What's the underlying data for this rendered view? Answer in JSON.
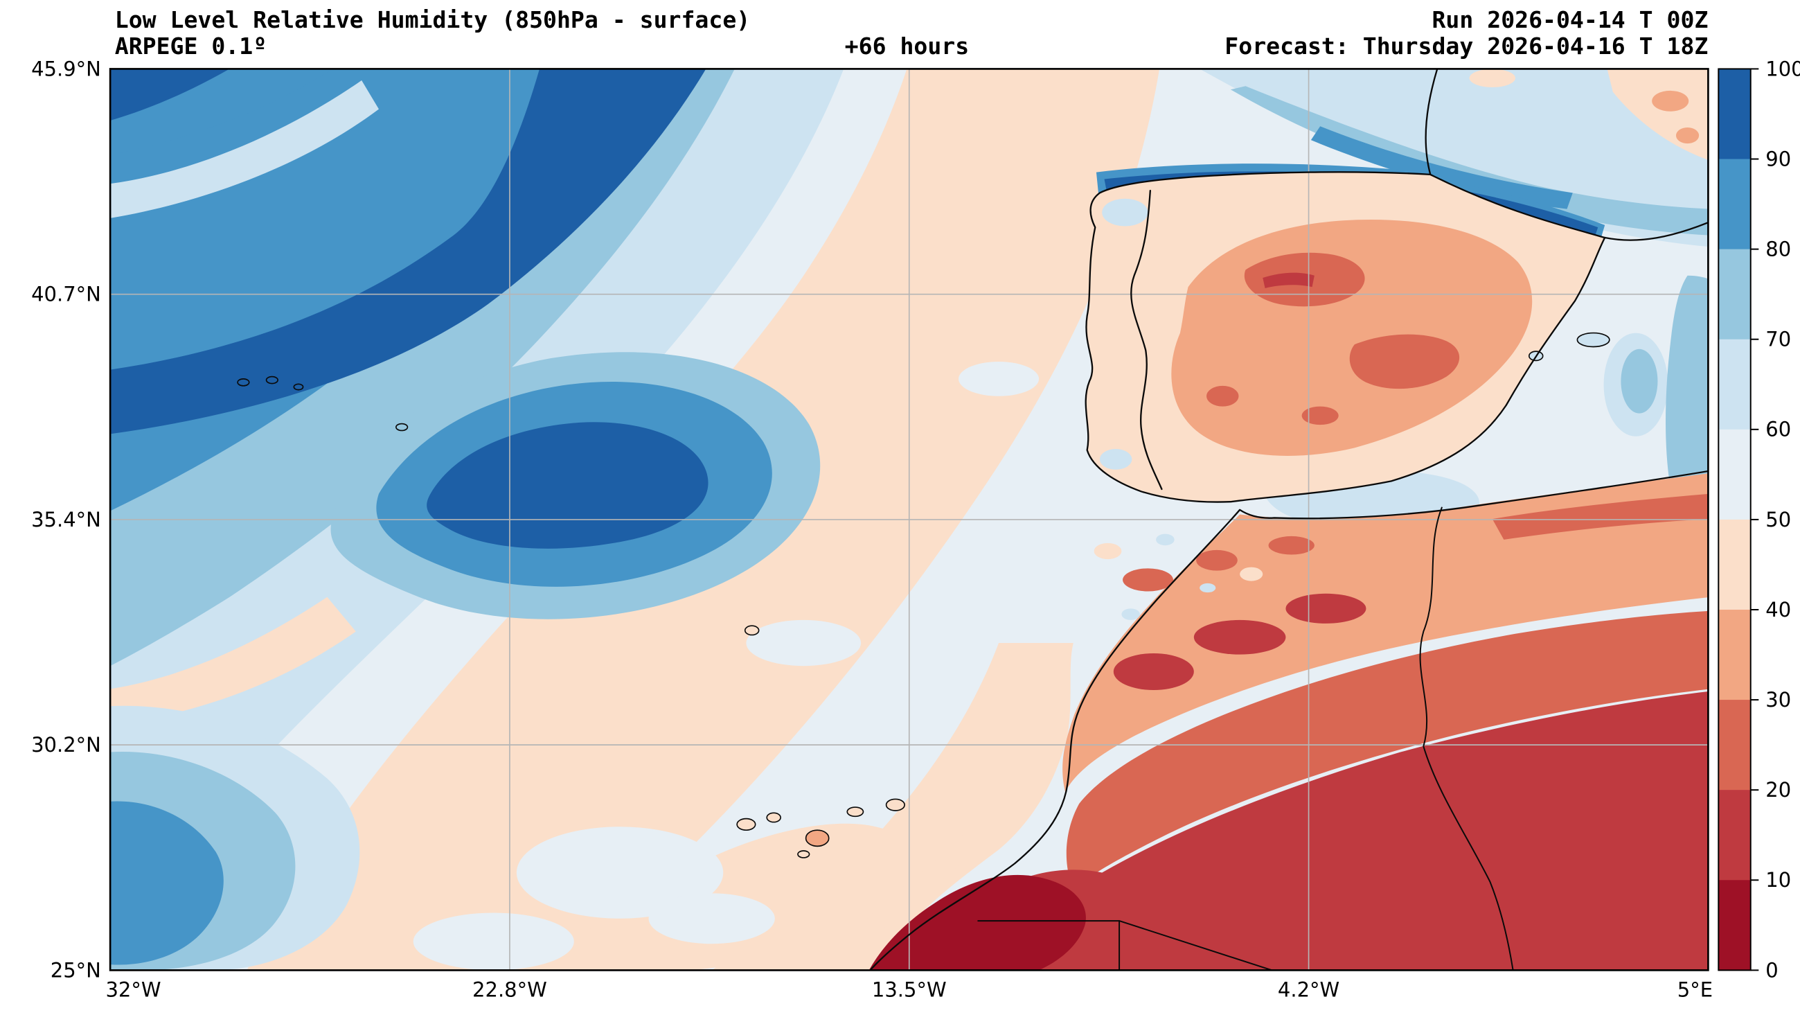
{
  "header": {
    "title": "Low Level Relative Humidity (850hPa - surface)",
    "model_line": "ARPEGE 0.1º",
    "lead_time": "+66 hours",
    "run_label": "Run 2026-04-14 T 00Z",
    "forecast_label": "Forecast: Thursday 2026-04-16 T 18Z"
  },
  "axes": {
    "x_ticks": [
      "32°W",
      "22.8°W",
      "13.5°W",
      "4.2°W",
      "5°E"
    ],
    "y_ticks": [
      "45.9°N",
      "40.7°N",
      "35.4°N",
      "30.2°N",
      "25°N"
    ]
  },
  "colorbar": {
    "tick_labels": [
      "100",
      "90",
      "80",
      "70",
      "60",
      "50",
      "40",
      "30",
      "20",
      "10",
      "0"
    ]
  },
  "colormap": [
    {
      "range": "0-10",
      "color": "#9e1126"
    },
    {
      "range": "10-20",
      "color": "#bf3a40"
    },
    {
      "range": "20-30",
      "color": "#d96753"
    },
    {
      "range": "30-40",
      "color": "#f2a783"
    },
    {
      "range": "40-50",
      "color": "#fbdfca"
    },
    {
      "range": "50-60",
      "color": "#e7eff5"
    },
    {
      "range": "60-70",
      "color": "#cde3f1"
    },
    {
      "range": "70-80",
      "color": "#96c7df"
    },
    {
      "range": "80-90",
      "color": "#4695c8"
    },
    {
      "range": "90-100",
      "color": "#1d5fa6"
    }
  ],
  "map": {
    "variable": "Low Level Relative Humidity",
    "layer": "850hPa - surface",
    "model": "ARPEGE",
    "resolution": "0.1º",
    "run": "2026-04-14 T 00Z",
    "forecast_valid": "Thursday 2026-04-16 T 18Z",
    "lead_time_hours": 66,
    "lon_label_range": [
      "32°W",
      "5°E"
    ],
    "lat_label_range": [
      "25°N",
      "45.9°N"
    ],
    "value_range": [
      0,
      100
    ]
  }
}
